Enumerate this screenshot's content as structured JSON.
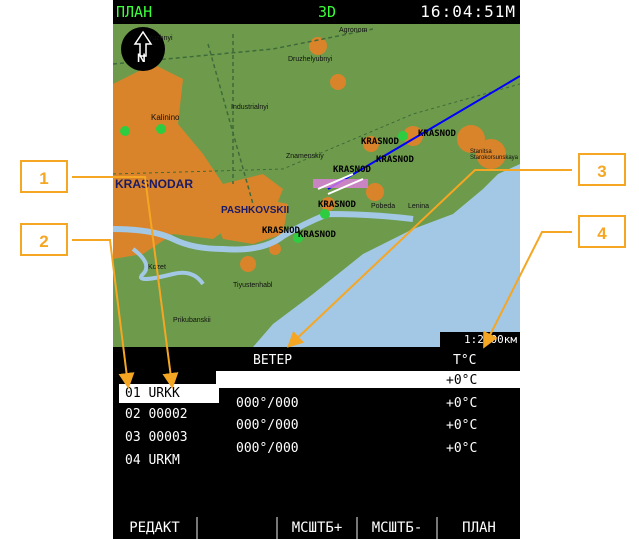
{
  "top_bar": {
    "mode": "ПЛАН",
    "view": "3D",
    "clock": "16:04:51М"
  },
  "map": {
    "scale": "1:2.00км",
    "north_label": "N",
    "towns": [
      "Yuzhnyi",
      "Agronom",
      "Druzhelyubnyi",
      "Industrialnyi",
      "Kalinino",
      "KRASNODAR",
      "Znamenskiy",
      "Stanitsa Starokorsunskaya",
      "PASHKOVSKII",
      "Kozet",
      "Tiyustenhabl",
      "Prikubanskii",
      "Pobeda",
      "Lenina"
    ],
    "airfields": [
      "KRASNOD",
      "KRASNOD",
      "KRASNOD",
      "KRASNOD",
      "KRASNOD",
      "KRASNOD",
      "KRASNOD"
    ],
    "colors": {
      "land": "#6d9b4b",
      "urban": "#d9842a",
      "water": "#a3c8e6",
      "route": "#0000ff"
    }
  },
  "table": {
    "wind_header": "ВЕТЕР",
    "temp_header": "Т°С",
    "waypoints": [
      {
        "id": "01 URKK",
        "wind": "",
        "temp": "+0°С",
        "selected": true
      },
      {
        "id": "02 00002",
        "wind": "000°/000",
        "temp": "+0°С",
        "selected": false
      },
      {
        "id": "03 00003",
        "wind": "000°/000",
        "temp": "+0°С",
        "selected": false
      },
      {
        "id": "04 URKM",
        "wind": "000°/000",
        "temp": "+0°С",
        "selected": false
      }
    ]
  },
  "softkeys": [
    "РЕДАКТ",
    "",
    "МСШТБ+",
    "МСШТБ-",
    "ПЛАН"
  ],
  "callouts": [
    "1",
    "2",
    "3",
    "4"
  ],
  "accent_color": "#f5a623"
}
